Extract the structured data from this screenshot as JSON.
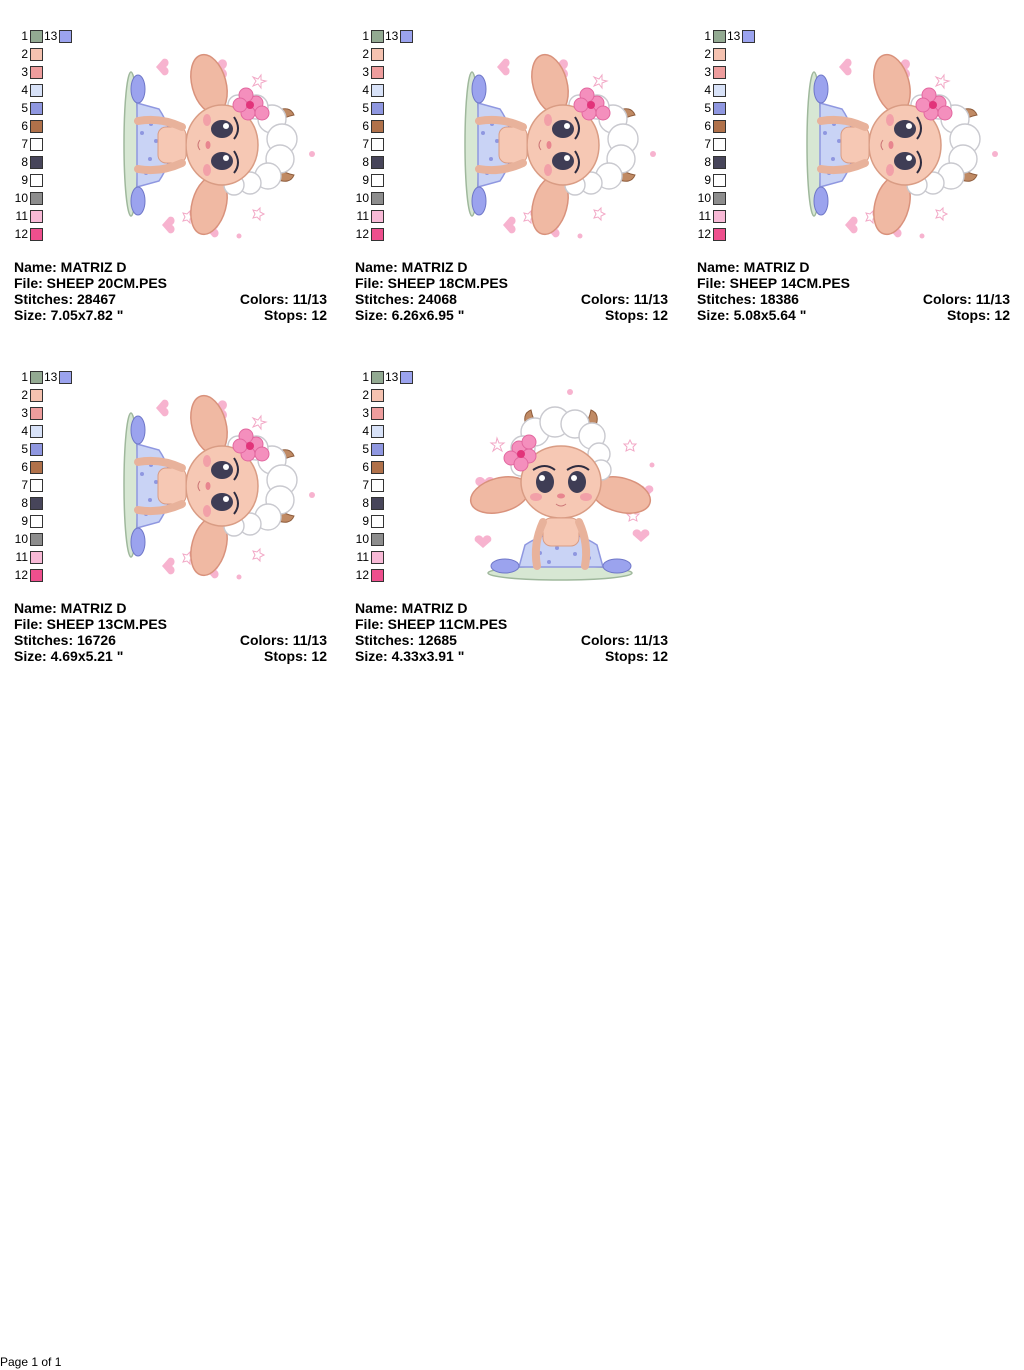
{
  "palette": {
    "swatches": [
      {
        "number": "1",
        "color": "#93aa92"
      },
      {
        "number": "2",
        "color": "#f5c2b0"
      },
      {
        "number": "3",
        "color": "#ee9d9d"
      },
      {
        "number": "4",
        "color": "#d8e2f8"
      },
      {
        "number": "5",
        "color": "#8f97e0"
      },
      {
        "number": "6",
        "color": "#b0714a"
      },
      {
        "number": "7",
        "color": "#ffffff"
      },
      {
        "number": "8",
        "color": "#47455a"
      },
      {
        "number": "9",
        "color": "#ffffff"
      },
      {
        "number": "10",
        "color": "#8d8d8d"
      },
      {
        "number": "11",
        "color": "#f8b9d6"
      },
      {
        "number": "12",
        "color": "#ee4f8d"
      }
    ],
    "extra": {
      "number": "13",
      "color": "#9ba3ee"
    }
  },
  "designs": [
    {
      "name_line": "Name: MATRIZ D",
      "file_line": "File: SHEEP 20CM.PES",
      "stitches_line": "Stitches: 28467",
      "colors_line": "Colors: 11/13",
      "size_line": "Size: 7.05x7.82 \"",
      "stops_line": "Stops: 12",
      "orientation": "rotated"
    },
    {
      "name_line": "Name: MATRIZ D",
      "file_line": "File: SHEEP 18CM.PES",
      "stitches_line": "Stitches: 24068",
      "colors_line": "Colors: 11/13",
      "size_line": "Size: 6.26x6.95 \"",
      "stops_line": "Stops: 12",
      "orientation": "rotated"
    },
    {
      "name_line": "Name: MATRIZ D",
      "file_line": "File: SHEEP 14CM.PES",
      "stitches_line": "Stitches: 18386",
      "colors_line": "Colors: 11/13",
      "size_line": "Size: 5.08x5.64 \"",
      "stops_line": "Stops: 12",
      "orientation": "rotated"
    },
    {
      "name_line": "Name: MATRIZ D",
      "file_line": "File: SHEEP 13CM.PES",
      "stitches_line": "Stitches: 16726",
      "colors_line": "Colors: 11/13",
      "size_line": "Size: 4.69x5.21 \"",
      "stops_line": "Stops: 12",
      "orientation": "rotated"
    },
    {
      "name_line": "Name: MATRIZ D",
      "file_line": "File: SHEEP 11CM.PES",
      "stitches_line": "Stitches: 12685",
      "colors_line": "Colors: 11/13",
      "size_line": "Size: 4.33x3.91 \"",
      "stops_line": "Stops: 12",
      "orientation": "upright"
    }
  ],
  "footer": {
    "page_label": "Page 1 of 1"
  }
}
